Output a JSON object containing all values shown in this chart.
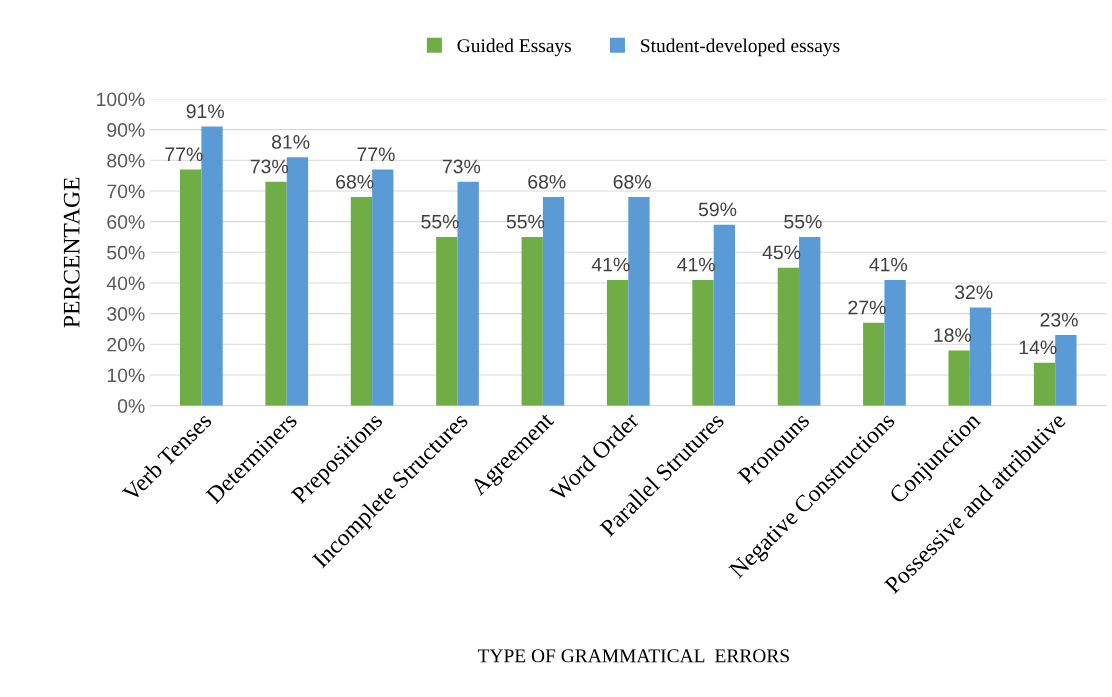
{
  "chart_data": {
    "type": "bar",
    "xlabel": "TYPE OF GRAMMATICAL  ERRORS",
    "ylabel": "PERCENTAGE",
    "categories": [
      "Verb Tenses",
      "Determiners",
      "Prepositions",
      "Incomplete Structures",
      "Agreement",
      "Word Order",
      "Parallel Strutures",
      "Pronouns",
      "Negative Constructions",
      "Conjunction",
      "Possessive and attributive"
    ],
    "series": [
      {
        "name": "Guided Essays",
        "color": "#70ad47",
        "values": [
          77,
          73,
          68,
          55,
          55,
          41,
          41,
          45,
          27,
          18,
          14
        ],
        "value_labels": [
          "77%",
          "73%",
          "68%",
          "55%",
          "55%",
          "41%",
          "41%",
          "45%",
          "27%",
          "18%",
          "14%"
        ]
      },
      {
        "name": "Student-developed essays",
        "color": "#5b9bd5",
        "values": [
          91,
          81,
          77,
          73,
          68,
          68,
          59,
          55,
          41,
          32,
          23
        ],
        "value_labels": [
          "91%",
          "81%",
          "77%",
          "73%",
          "68%",
          "68%",
          "59%",
          "55%",
          "41%",
          "32%",
          "23%"
        ]
      }
    ],
    "ylim": [
      0,
      100
    ],
    "yticks": [
      {
        "value": 0,
        "label": "0%"
      },
      {
        "value": 10,
        "label": "10%"
      },
      {
        "value": 20,
        "label": "20%"
      },
      {
        "value": 30,
        "label": "30%"
      },
      {
        "value": 40,
        "label": "40%"
      },
      {
        "value": 50,
        "label": "50%"
      },
      {
        "value": 60,
        "label": "60%"
      },
      {
        "value": 70,
        "label": "70%"
      },
      {
        "value": 80,
        "label": "80%"
      },
      {
        "value": 90,
        "label": "90%"
      },
      {
        "value": 100,
        "label": "100%"
      }
    ],
    "grid": "y",
    "legend": "top"
  }
}
